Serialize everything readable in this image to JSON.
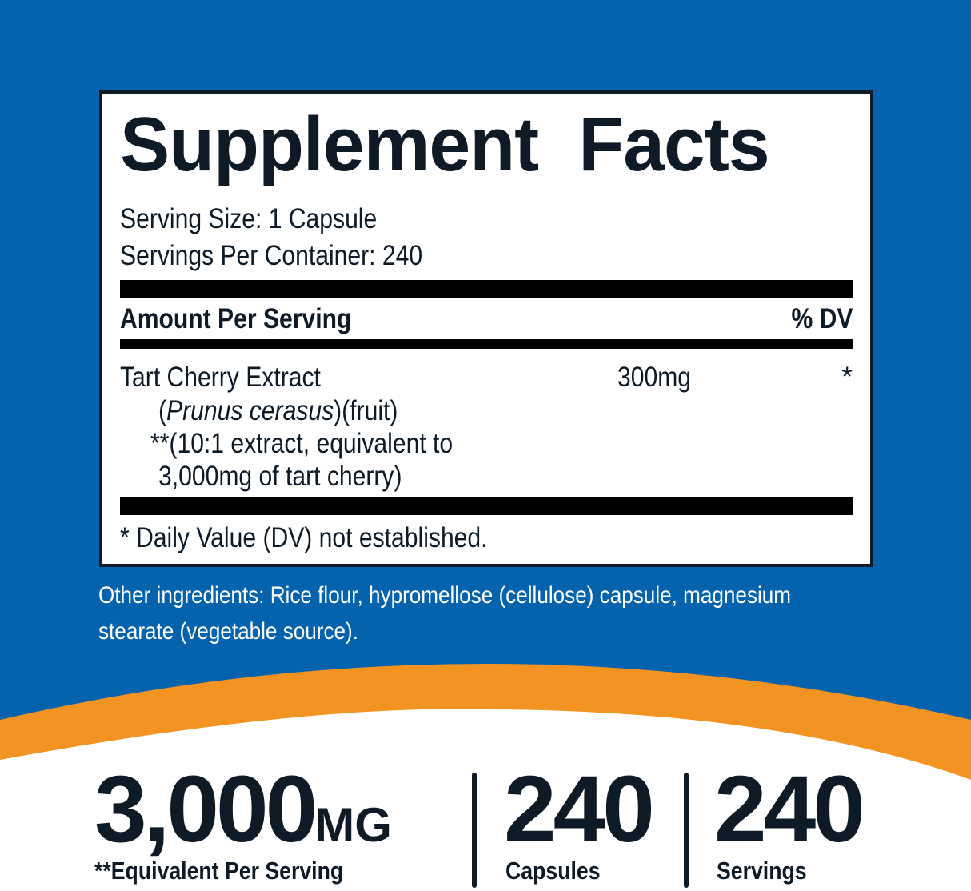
{
  "colors": {
    "background_blue": "#0563ae",
    "accent_orange": "#f29322",
    "text_dark": "#0e1a26"
  },
  "label": {
    "title": "Supplement Facts",
    "serving_size": "Serving Size: 1 Capsule",
    "servings_per_container": "Servings Per Container: 240",
    "amount_header": "Amount Per Serving",
    "dv_header": "% DV",
    "ingredient": {
      "name": "Tart Cherry Extract",
      "latin_open": "(",
      "latin": "Prunus cerasus",
      "latin_close": ")(fruit)",
      "note_line1": "**(10:1 extract, equivalent to",
      "note_line2": "3,000mg of tart cherry)",
      "amount": "300mg",
      "dv": "*"
    },
    "footnote": "* Daily Value (DV) not established."
  },
  "other_ingredients": {
    "line1": "Other ingredients: Rice flour, hypromellose (cellulose) capsule, magnesium",
    "line2": "stearate (vegetable source)."
  },
  "stats": [
    {
      "value": "3,000",
      "unit": "MG",
      "label": "**Equivalent Per Serving"
    },
    {
      "value": "240",
      "label": "Capsules"
    },
    {
      "value": "240",
      "label": "Servings"
    }
  ]
}
